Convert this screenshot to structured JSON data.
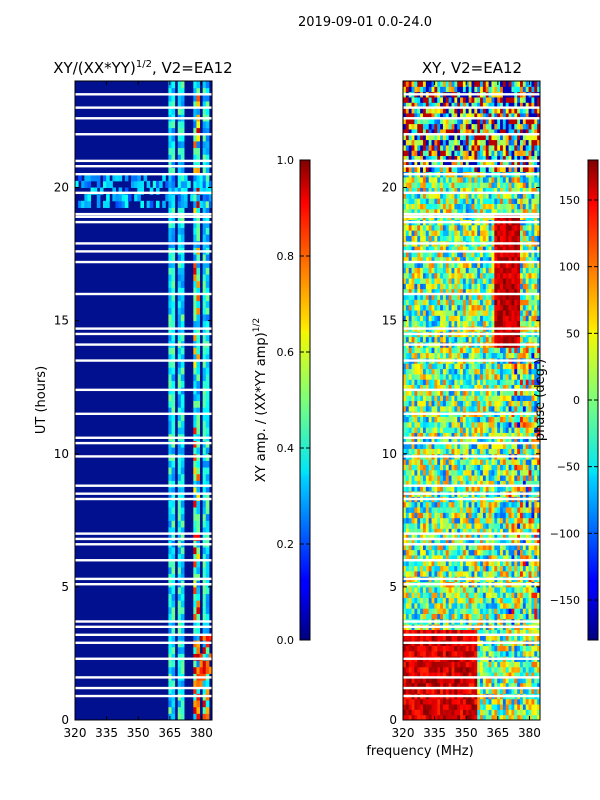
{
  "suptitle": "2019-09-01 0.0-24.0",
  "xlabel_shared": "frequency (MHz)",
  "chart_data": [
    {
      "type": "heatmap",
      "title_main": "XY/(XX*YY)",
      "title_sup": "1/2",
      "title_tail": ", V2=EA12",
      "ylabel": "UT (hours)",
      "xlim": [
        320,
        385
      ],
      "ylim": [
        0,
        24
      ],
      "xticks": [
        320,
        335,
        350,
        365,
        380
      ],
      "yticks": [
        0,
        5,
        10,
        15,
        20
      ],
      "colorbar": {
        "label_main": "XY amp. / (XX*YY amp)",
        "label_sup": "1/2",
        "range": [
          0.0,
          1.0
        ],
        "ticks": [
          "0.0",
          "0.2",
          "0.4",
          "0.6",
          "0.8",
          "1.0"
        ],
        "tick_values": [
          0,
          0.2,
          0.4,
          0.6,
          0.8,
          1.0
        ]
      },
      "flagged_ut_hours": [
        0.9,
        1.2,
        1.6,
        2.3,
        2.9,
        3.2,
        3.5,
        3.7,
        5.1,
        5.3,
        6.0,
        6.6,
        6.8,
        7.0,
        8.3,
        8.5,
        8.8,
        9.9,
        10.4,
        10.6,
        11.5,
        12.4,
        13.5,
        14.1,
        14.5,
        14.7,
        16.0,
        17.2,
        17.6,
        17.9,
        18.7,
        18.9,
        19.0,
        19.8,
        20.5,
        20.8,
        21.0,
        22.0,
        22.6,
        23.0,
        23.5
      ],
      "bright_channels_MHz": [
        [
          364,
          368
        ],
        [
          369,
          372
        ],
        [
          376,
          379
        ],
        [
          380,
          384
        ]
      ]
    },
    {
      "type": "heatmap",
      "title_main": "XY, V2=EA12",
      "xlim": [
        320,
        385
      ],
      "ylim": [
        0,
        24
      ],
      "xticks": [
        320,
        335,
        350,
        365,
        380
      ],
      "yticks": [
        0,
        5,
        10,
        15,
        20
      ],
      "colorbar": {
        "label_main": "phase (deg.)",
        "range": [
          -180,
          180
        ],
        "ticks": [
          "150",
          "100",
          "50",
          "0",
          "−50",
          "−100",
          "−150"
        ],
        "tick_values": [
          150,
          100,
          50,
          0,
          -50,
          -100,
          -150
        ]
      },
      "flagged_ut_hours": [
        0.9,
        1.2,
        1.6,
        2.3,
        2.9,
        3.2,
        3.5,
        3.7,
        5.1,
        5.3,
        6.0,
        6.6,
        6.8,
        7.0,
        8.3,
        8.5,
        8.8,
        9.9,
        10.4,
        10.6,
        11.5,
        12.4,
        13.5,
        14.1,
        14.5,
        14.7,
        16.0,
        17.2,
        17.6,
        17.9,
        18.7,
        18.9,
        19.0,
        19.8,
        20.5,
        20.8,
        21.0,
        22.0,
        22.6,
        23.0,
        23.5
      ]
    }
  ]
}
